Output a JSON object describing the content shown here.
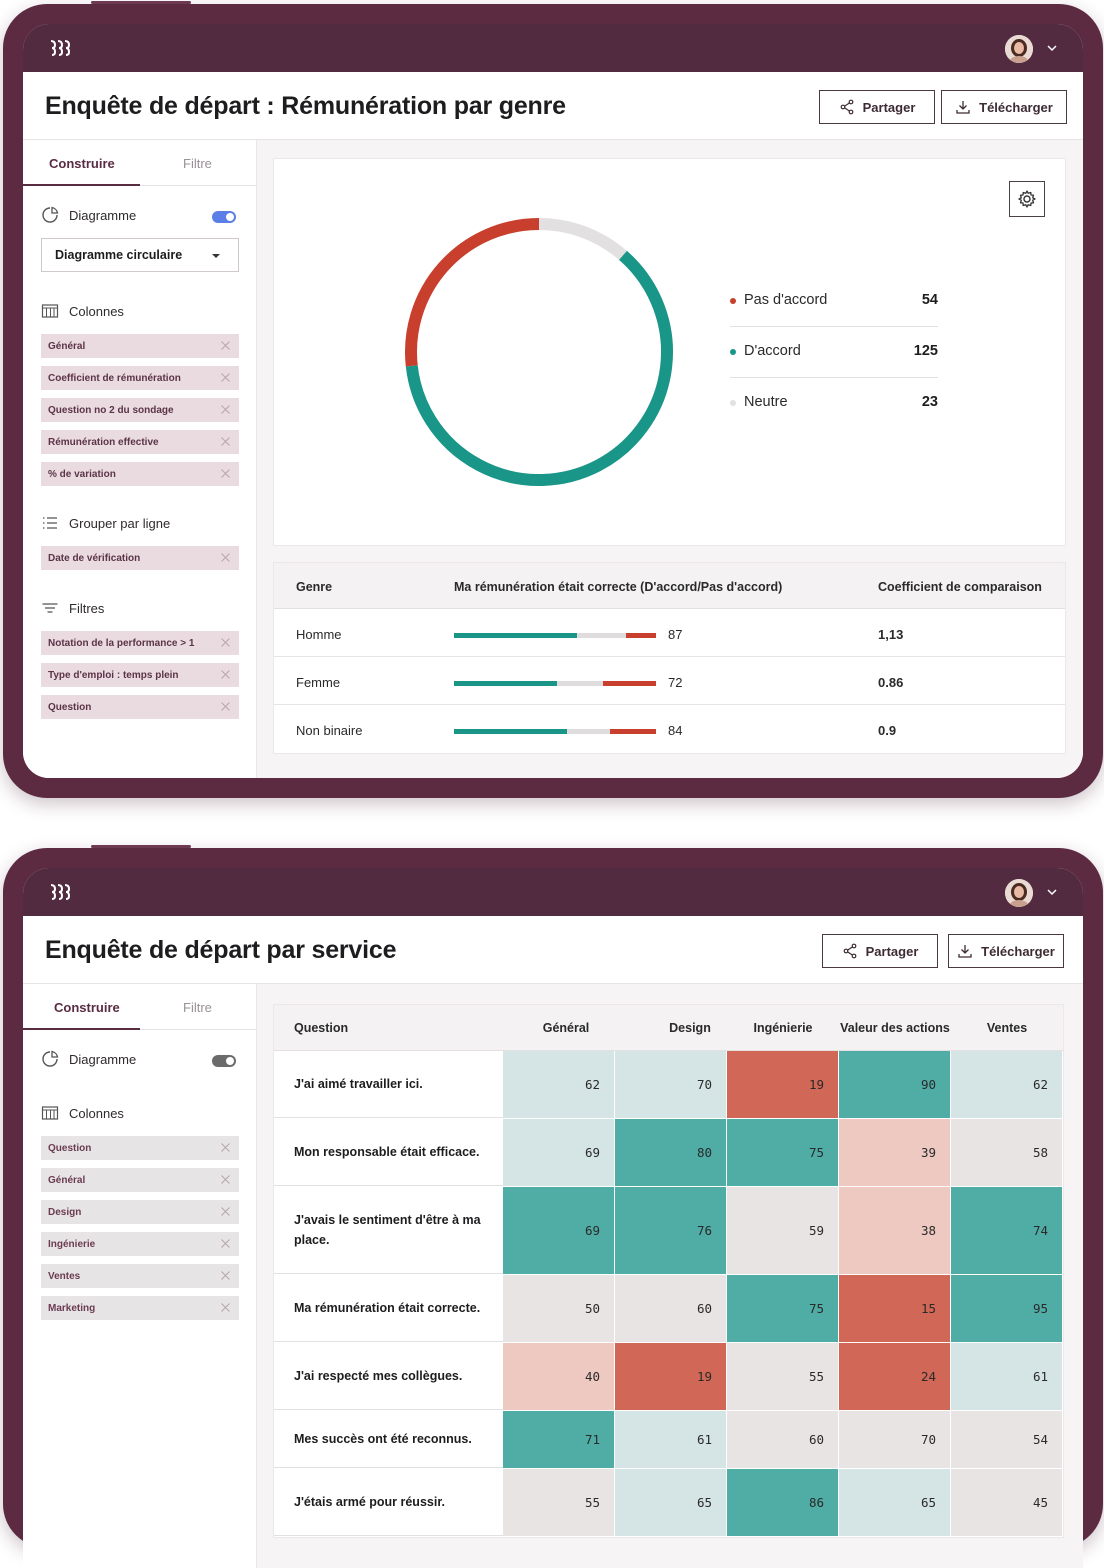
{
  "colors": {
    "frame": "#5c2a41",
    "topbar": "#532b40",
    "accent": "#5a2c42",
    "teal": "#1a9688",
    "red": "#c8402d",
    "neutral": "#dedcdd",
    "heat_dark_teal": "#4fada6",
    "heat_light_teal": "#d5e5e5",
    "heat_gray": "#e8e4e3",
    "heat_light_red": "#eec9c2",
    "heat_red": "#d16756"
  },
  "screen1": {
    "title": "Enquête de départ : Rémunération par genre",
    "share_label": "Partager",
    "download_label": "Télécharger",
    "tabs": {
      "build": "Construire",
      "filter": "Filtre"
    },
    "chart_toggle_label": "Diagramme",
    "chart_select_value": "Diagramme circulaire",
    "columns_label": "Colonnes",
    "columns": [
      "Général",
      "Coefficient de rémunération",
      "Question no 2 du sondage",
      "Rémunération effective",
      "% de variation"
    ],
    "group_label": "Grouper par ligne",
    "group_items": [
      "Date de vérification"
    ],
    "filters_label": "Filtres",
    "filters": [
      "Notation de la performance > 1",
      "Type d'emploi : temps plein",
      "Question"
    ],
    "legend": [
      {
        "label": "Pas d'accord",
        "value": "54",
        "color": "#c8402d"
      },
      {
        "label": "D'accord",
        "value": "125",
        "color": "#1a9688"
      },
      {
        "label": "Neutre",
        "value": "23",
        "color": "#e2e0e1"
      }
    ],
    "table": {
      "headers": [
        "Genre",
        "Ma rémunération était correcte (D'accord/Pas d'accord)",
        "Coefficient de comparaison"
      ],
      "rows": [
        {
          "genre": "Homme",
          "score": "87",
          "coef": "1,13",
          "agree": 0.61,
          "disagree": 0.15
        },
        {
          "genre": "Femme",
          "score": "72",
          "coef": "0.86",
          "agree": 0.51,
          "disagree": 0.26
        },
        {
          "genre": "Non binaire",
          "score": "84",
          "coef": "0.9",
          "agree": 0.56,
          "disagree": 0.23
        }
      ]
    }
  },
  "chart_data": {
    "type": "pie",
    "categories": [
      "Pas d'accord",
      "D'accord",
      "Neutre"
    ],
    "values": [
      54,
      125,
      23
    ],
    "title": "",
    "legend": "right"
  },
  "screen2": {
    "title": "Enquête de départ par service",
    "share_label": "Partager",
    "download_label": "Télécharger",
    "tabs": {
      "build": "Construire",
      "filter": "Filtre"
    },
    "chart_toggle_label": "Diagramme",
    "columns_label": "Colonnes",
    "columns": [
      "Question",
      "Général",
      "Design",
      "Ingénierie",
      "Ventes",
      "Marketing"
    ],
    "table": {
      "headers": [
        "Question",
        "Général",
        "Design",
        "Ingénierie",
        "Valeur des actions",
        "Ventes"
      ],
      "rows": [
        {
          "q": "J'ai aimé travailler ici.",
          "v": [
            "62",
            "70",
            "19",
            "90",
            "62"
          ],
          "h": [
            "lt",
            "lt",
            "r",
            "dt",
            "lt"
          ]
        },
        {
          "q": "Mon responsable était efficace.",
          "v": [
            "69",
            "80",
            "75",
            "39",
            "58"
          ],
          "h": [
            "lt",
            "dt",
            "dt",
            "lr",
            "g"
          ]
        },
        {
          "q": "J'avais le sentiment d'être à ma place.",
          "v": [
            "69",
            "76",
            "59",
            "38",
            "74"
          ],
          "h": [
            "dt",
            "dt",
            "g",
            "lr",
            "dt"
          ]
        },
        {
          "q": "Ma rémunération était correcte.",
          "v": [
            "50",
            "60",
            "75",
            "15",
            "95"
          ],
          "h": [
            "g",
            "g",
            "dt",
            "r",
            "dt"
          ]
        },
        {
          "q": "J'ai respecté mes collègues.",
          "v": [
            "40",
            "19",
            "55",
            "24",
            "61"
          ],
          "h": [
            "lr",
            "r",
            "g",
            "r",
            "lt"
          ]
        },
        {
          "q": "Mes succès ont été reconnus.",
          "v": [
            "71",
            "61",
            "60",
            "70",
            "54"
          ],
          "h": [
            "dt",
            "lt",
            "g",
            "g",
            "g"
          ]
        },
        {
          "q": "J'étais armé pour réussir.",
          "v": [
            "55",
            "65",
            "86",
            "65",
            "45"
          ],
          "h": [
            "g",
            "lt",
            "dt",
            "lt",
            "g"
          ]
        }
      ]
    }
  }
}
